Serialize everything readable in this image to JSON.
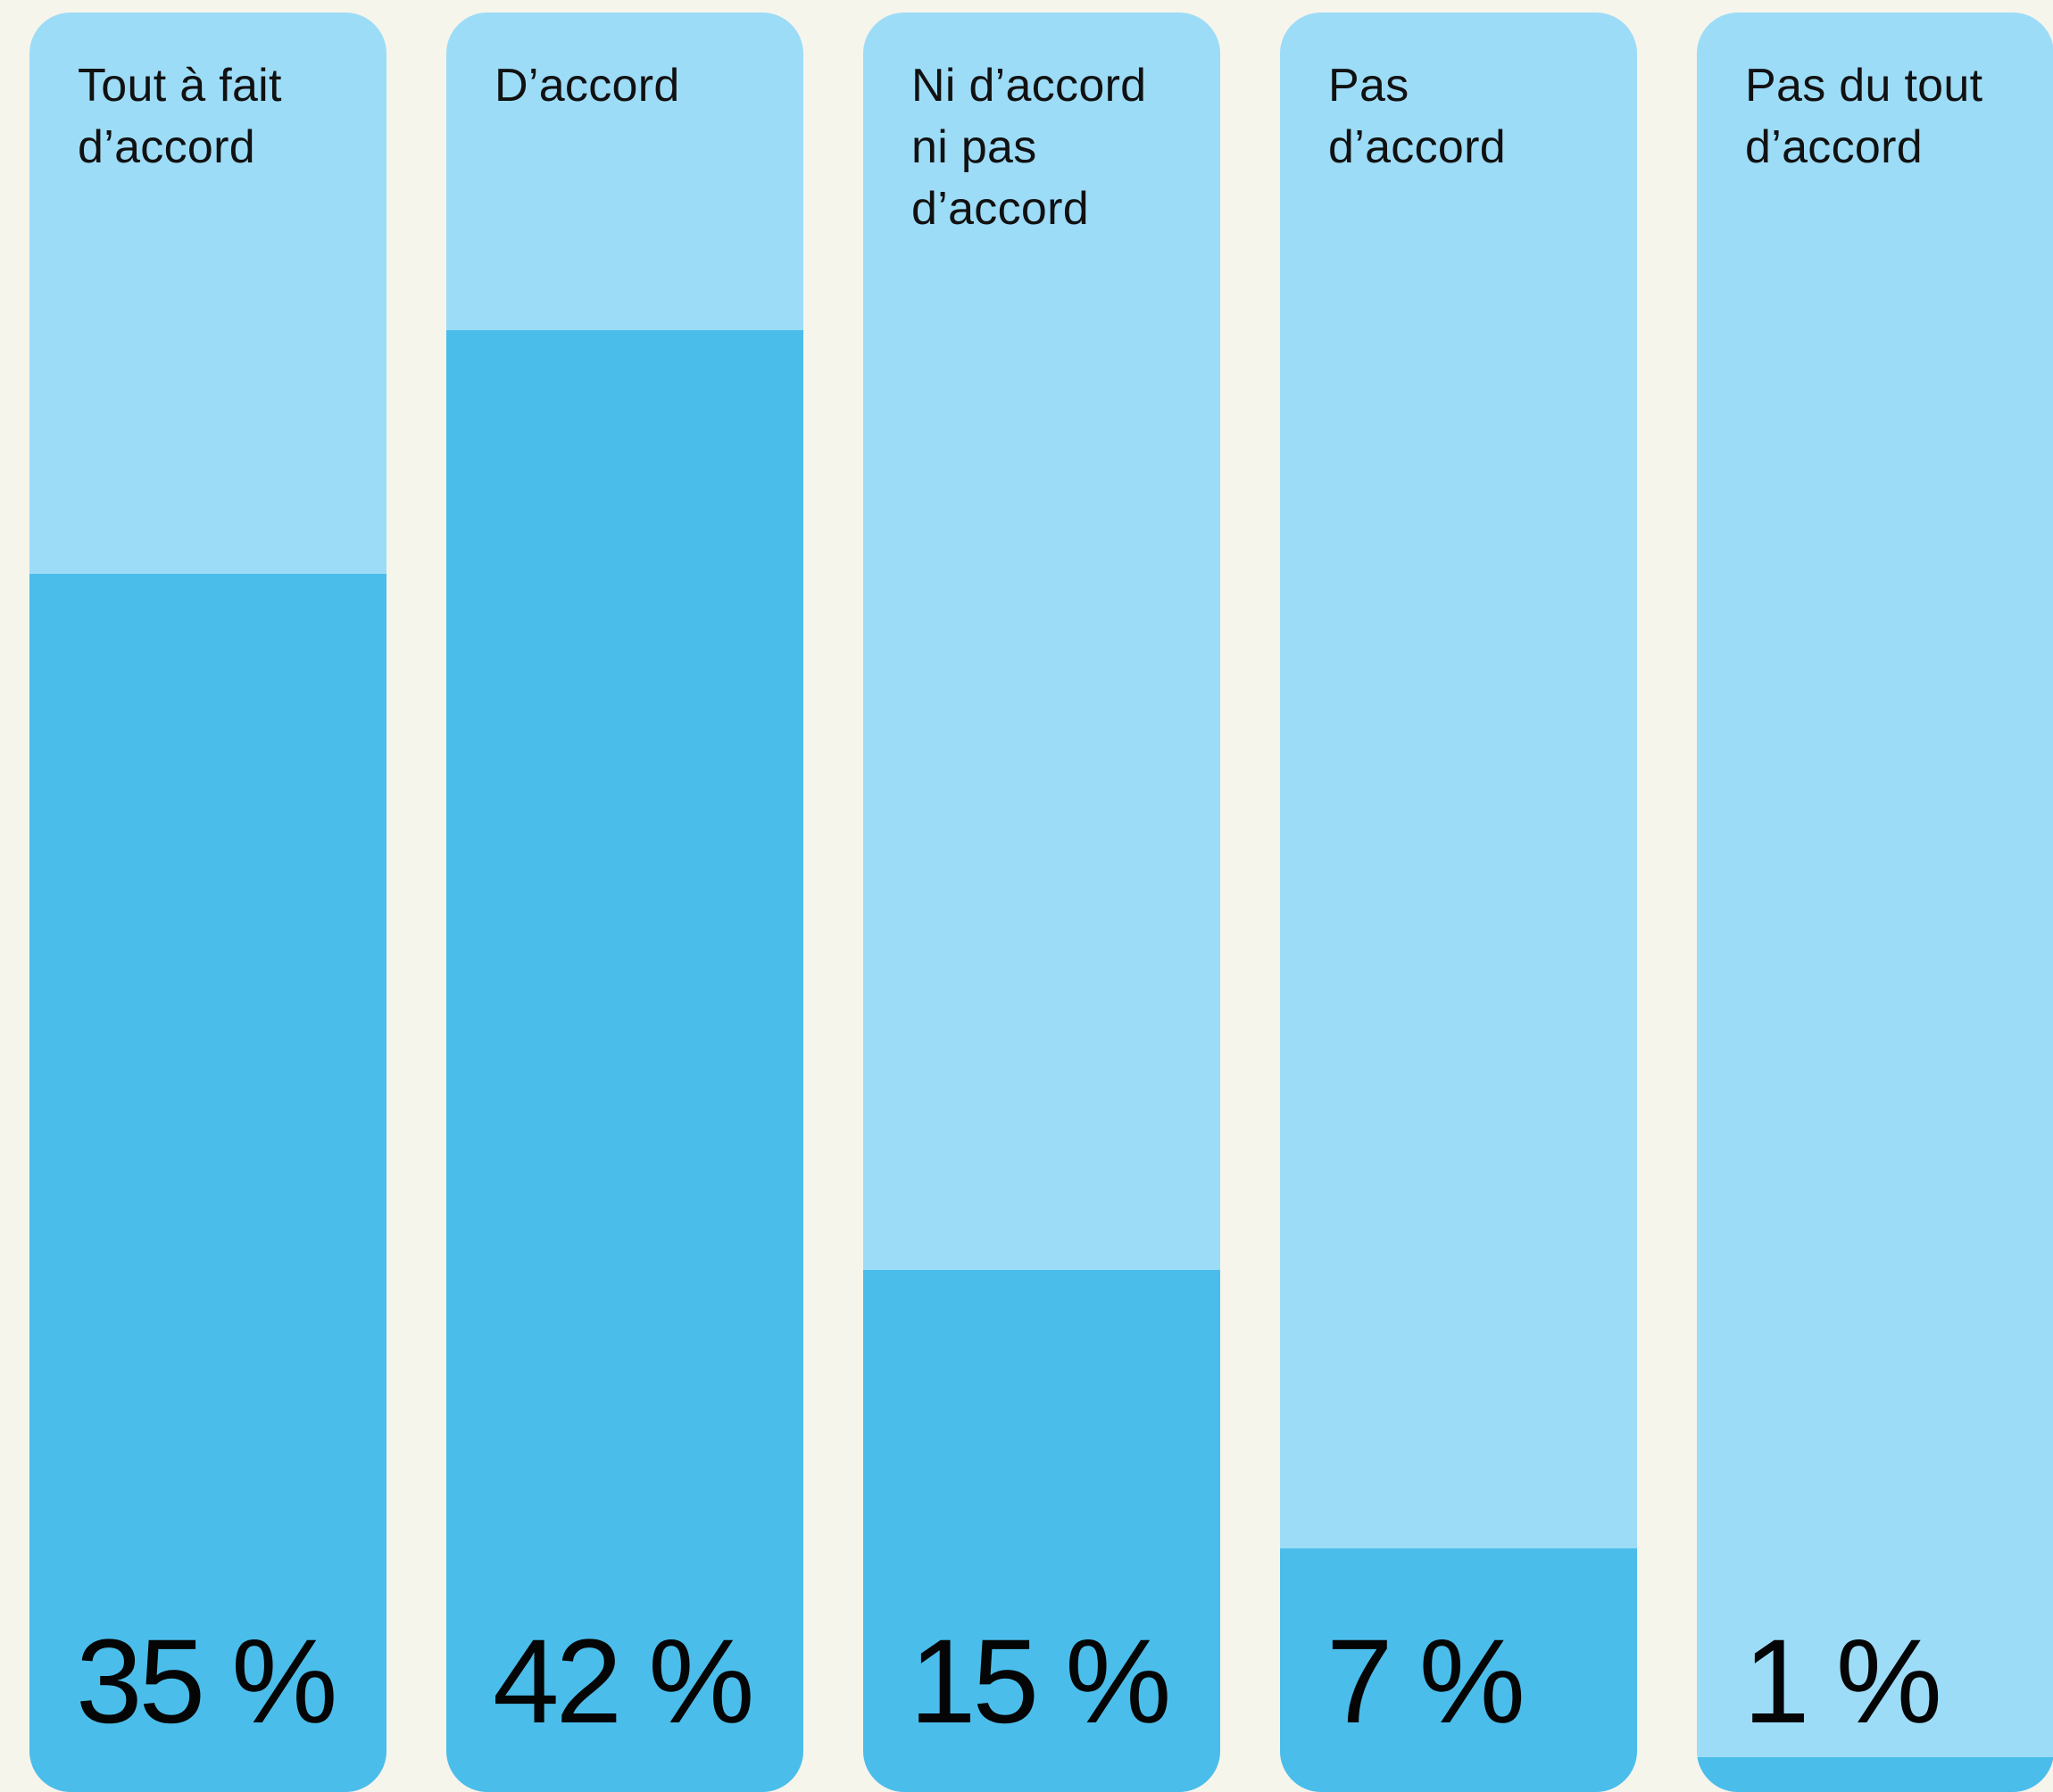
{
  "colors": {
    "background": "#f6f5ec",
    "track": "#9ddcf7",
    "fill": "#4bbdea",
    "text": "#111111"
  },
  "chart_data": {
    "type": "bar",
    "orientation": "vertical",
    "ylim": [
      0,
      42
    ],
    "categories": [
      "Tout à fait\nd’accord",
      "D’accord",
      "Ni d’accord\nni pas\nd’accord",
      "Pas\nd’accord",
      "Pas du tout\nd’accord"
    ],
    "values": [
      35,
      42,
      15,
      7,
      1
    ],
    "value_labels": [
      "35 %",
      "42 %",
      "15 %",
      "7 %",
      "1 %"
    ],
    "title": "",
    "xlabel": "",
    "ylabel": "",
    "grid": false,
    "legend": "none"
  }
}
